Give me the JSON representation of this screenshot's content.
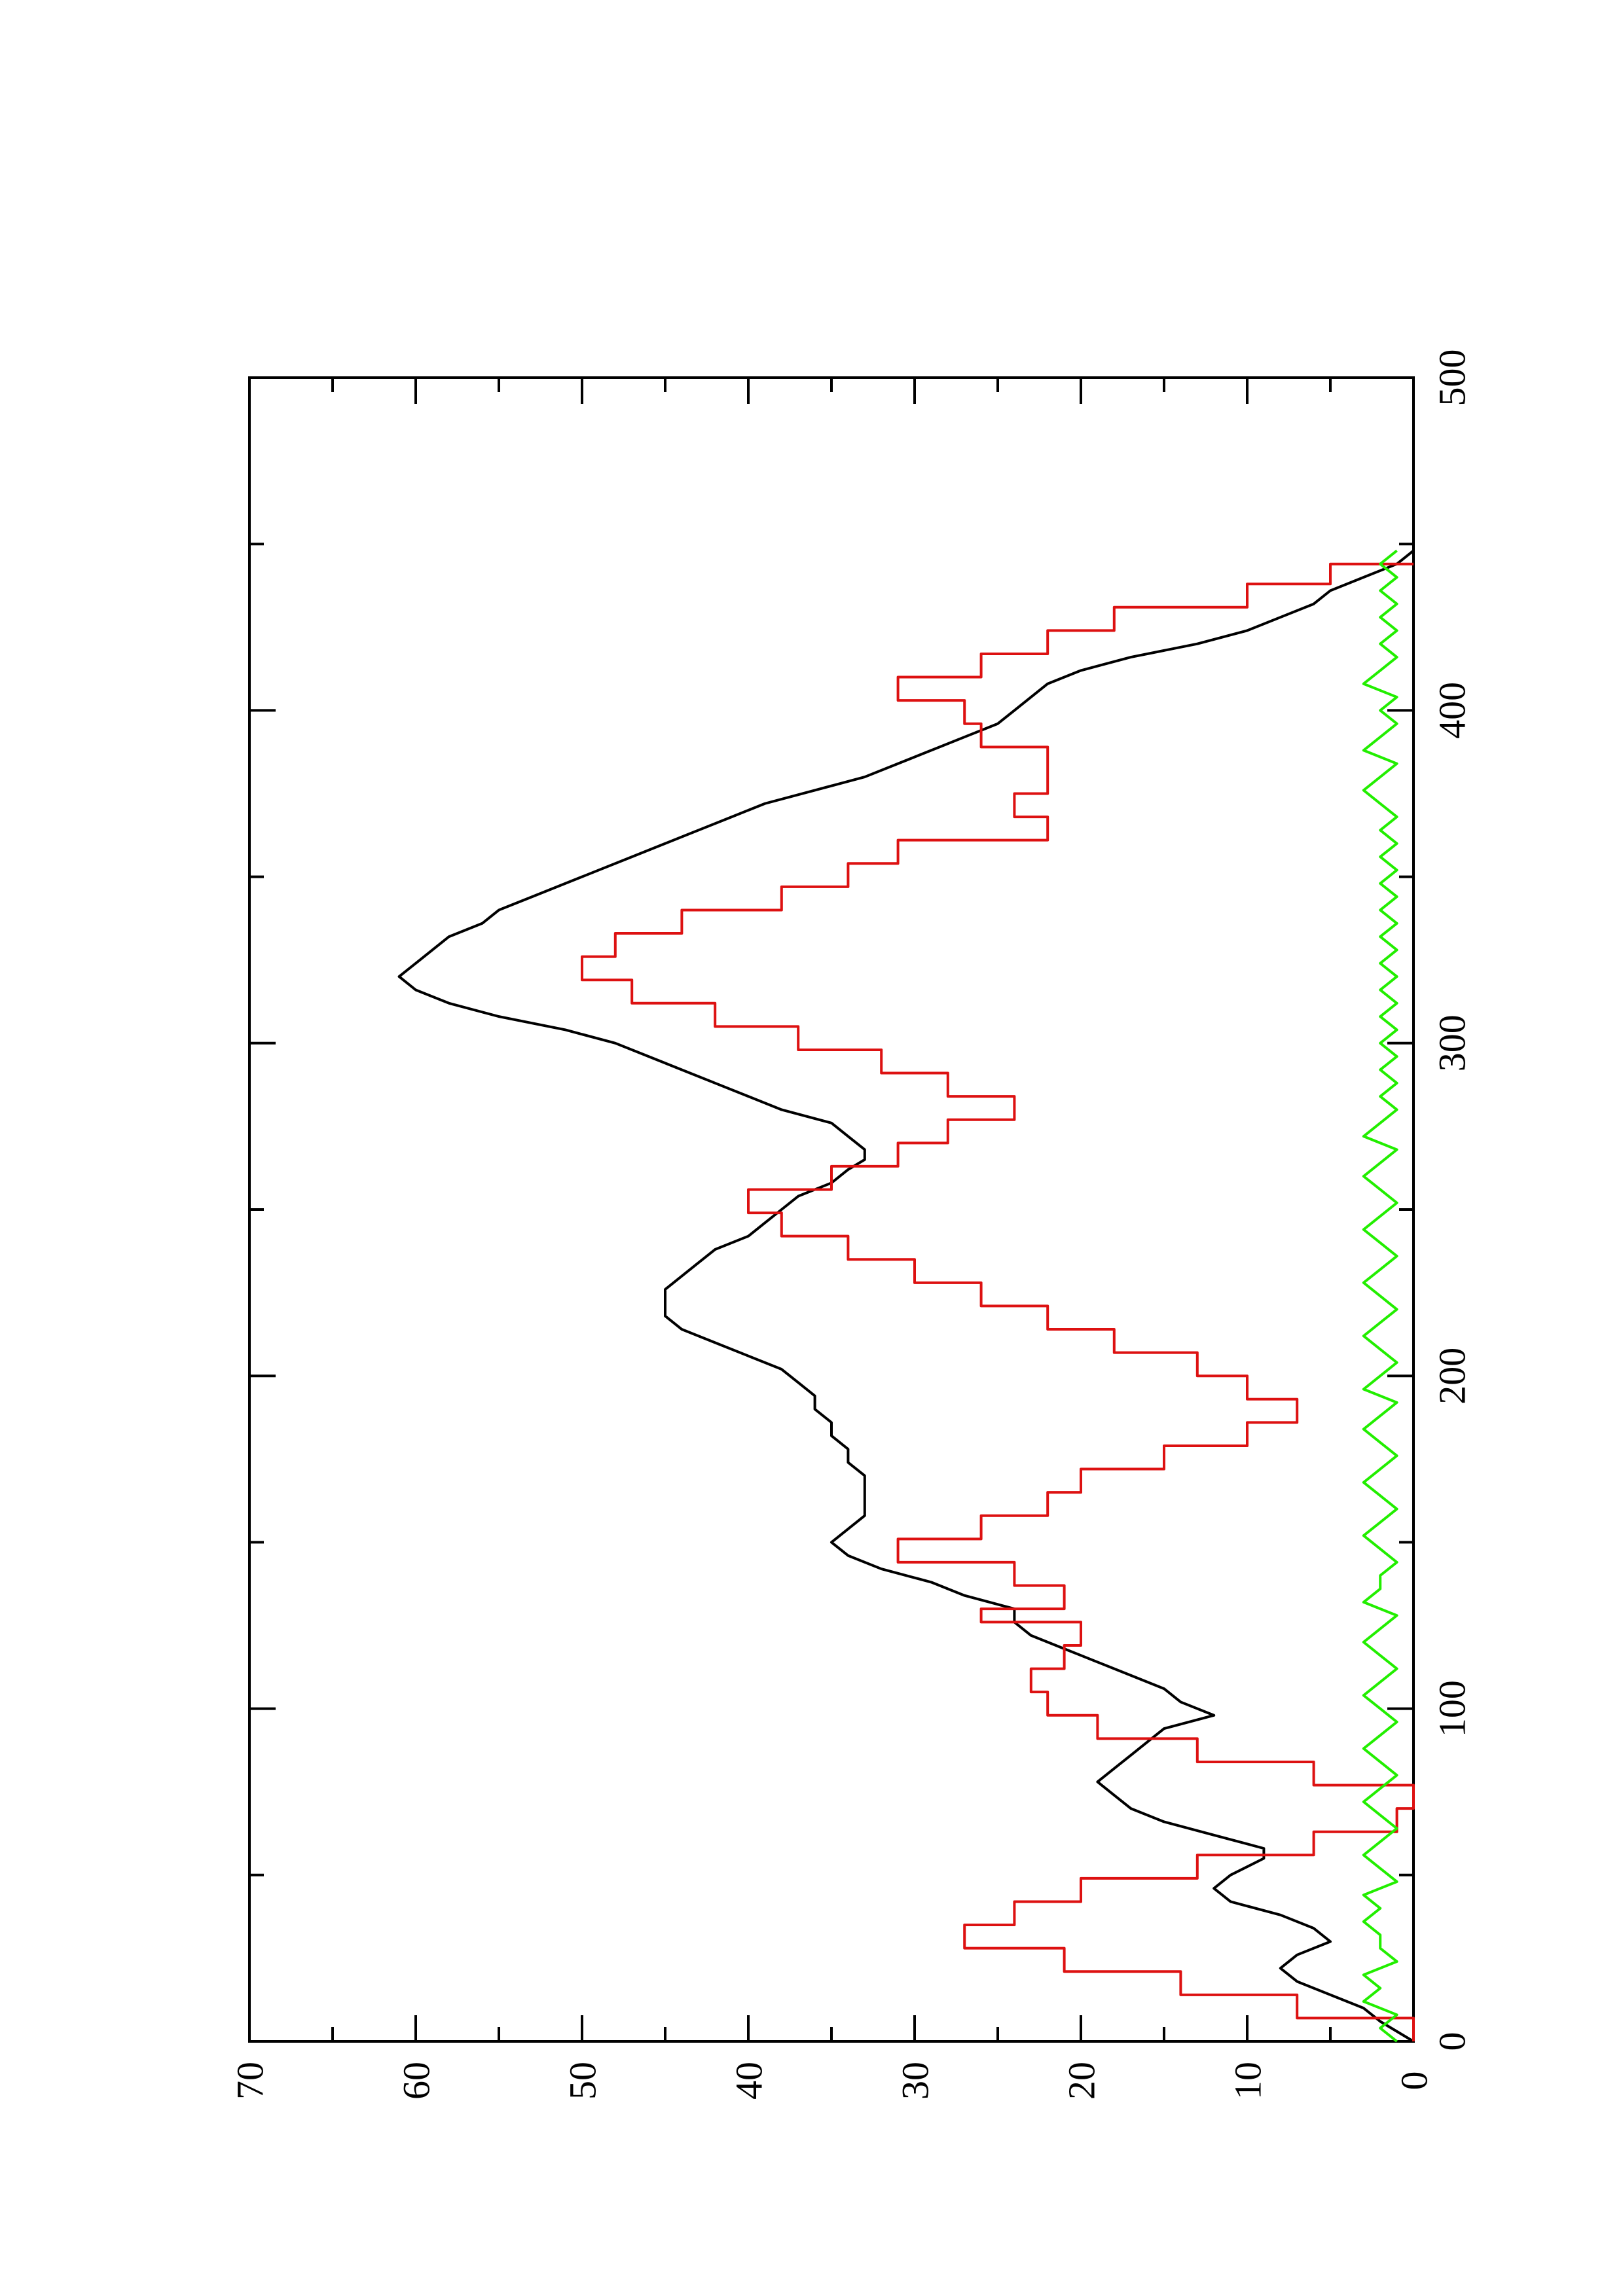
{
  "chart_data": {
    "type": "line",
    "title": "",
    "xlabel": "",
    "ylabel": "",
    "xlim": [
      0,
      500
    ],
    "ylim": [
      0,
      70
    ],
    "x_ticks": [
      0,
      100,
      200,
      300,
      400,
      500
    ],
    "x_tick_labels": [
      "0",
      "100",
      "200",
      "300",
      "400",
      "500"
    ],
    "y_ticks": [
      0,
      10,
      20,
      30,
      40,
      50,
      60,
      70
    ],
    "y_tick_labels": [
      "0",
      "10",
      "20",
      "30",
      "40",
      "50",
      "60",
      "70"
    ],
    "grid": false,
    "legend": "none",
    "orientation": "rotated 90 degrees counter-clockwise",
    "series": [
      {
        "color": "#000000",
        "style": "smooth",
        "points": [
          [
            0,
            0
          ],
          [
            3,
            1
          ],
          [
            6,
            2
          ],
          [
            10,
            3
          ],
          [
            14,
            5
          ],
          [
            18,
            7
          ],
          [
            22,
            8
          ],
          [
            26,
            7
          ],
          [
            30,
            5
          ],
          [
            34,
            6
          ],
          [
            38,
            8
          ],
          [
            42,
            11
          ],
          [
            46,
            12
          ],
          [
            50,
            11
          ],
          [
            55,
            9
          ],
          [
            58,
            9
          ],
          [
            62,
            12
          ],
          [
            66,
            15
          ],
          [
            70,
            17
          ],
          [
            74,
            18
          ],
          [
            78,
            19
          ],
          [
            82,
            18
          ],
          [
            86,
            17
          ],
          [
            90,
            16
          ],
          [
            94,
            15
          ],
          [
            98,
            12
          ],
          [
            102,
            14
          ],
          [
            106,
            15
          ],
          [
            110,
            17
          ],
          [
            114,
            19
          ],
          [
            118,
            21
          ],
          [
            122,
            23
          ],
          [
            126,
            24
          ],
          [
            130,
            24
          ],
          [
            134,
            27
          ],
          [
            138,
            29
          ],
          [
            142,
            32
          ],
          [
            146,
            34
          ],
          [
            150,
            35
          ],
          [
            154,
            34
          ],
          [
            158,
            33
          ],
          [
            162,
            33
          ],
          [
            166,
            33
          ],
          [
            170,
            33
          ],
          [
            174,
            34
          ],
          [
            178,
            34
          ],
          [
            182,
            35
          ],
          [
            186,
            35
          ],
          [
            190,
            36
          ],
          [
            194,
            36
          ],
          [
            198,
            37
          ],
          [
            202,
            38
          ],
          [
            206,
            40
          ],
          [
            210,
            42
          ],
          [
            214,
            44
          ],
          [
            218,
            45
          ],
          [
            222,
            45
          ],
          [
            226,
            45
          ],
          [
            230,
            44
          ],
          [
            234,
            43
          ],
          [
            238,
            42
          ],
          [
            242,
            40
          ],
          [
            246,
            39
          ],
          [
            250,
            38
          ],
          [
            254,
            37
          ],
          [
            258,
            35
          ],
          [
            262,
            34
          ],
          [
            265,
            33
          ],
          [
            268,
            33
          ],
          [
            272,
            34
          ],
          [
            276,
            35
          ],
          [
            280,
            38
          ],
          [
            284,
            40
          ],
          [
            288,
            42
          ],
          [
            292,
            44
          ],
          [
            296,
            46
          ],
          [
            300,
            48
          ],
          [
            304,
            51
          ],
          [
            308,
            55
          ],
          [
            312,
            58
          ],
          [
            316,
            60
          ],
          [
            320,
            61
          ],
          [
            324,
            60
          ],
          [
            328,
            59
          ],
          [
            332,
            58
          ],
          [
            336,
            56
          ],
          [
            340,
            55
          ],
          [
            344,
            53
          ],
          [
            348,
            51
          ],
          [
            352,
            49
          ],
          [
            356,
            47
          ],
          [
            360,
            45
          ],
          [
            364,
            43
          ],
          [
            368,
            41
          ],
          [
            372,
            39
          ],
          [
            376,
            36
          ],
          [
            380,
            33
          ],
          [
            384,
            31
          ],
          [
            388,
            29
          ],
          [
            392,
            27
          ],
          [
            396,
            25
          ],
          [
            400,
            24
          ],
          [
            404,
            23
          ],
          [
            408,
            22
          ],
          [
            412,
            20
          ],
          [
            416,
            17
          ],
          [
            420,
            13
          ],
          [
            424,
            10
          ],
          [
            428,
            8
          ],
          [
            432,
            6
          ],
          [
            436,
            5
          ],
          [
            440,
            3
          ],
          [
            444,
            1
          ],
          [
            448,
            0
          ]
        ]
      },
      {
        "color": "#dd1111",
        "style": "step",
        "points": [
          [
            0,
            0
          ],
          [
            7,
            7
          ],
          [
            14,
            14
          ],
          [
            21,
            21
          ],
          [
            28,
            27
          ],
          [
            35,
            24
          ],
          [
            42,
            20
          ],
          [
            49,
            13
          ],
          [
            56,
            6
          ],
          [
            63,
            1
          ],
          [
            70,
            0
          ],
          [
            77,
            6
          ],
          [
            84,
            13
          ],
          [
            91,
            19
          ],
          [
            98,
            22
          ],
          [
            105,
            23
          ],
          [
            112,
            21
          ],
          [
            119,
            20
          ],
          [
            126,
            26
          ],
          [
            130,
            21
          ],
          [
            137,
            24
          ],
          [
            144,
            31
          ],
          [
            151,
            26
          ],
          [
            158,
            22
          ],
          [
            165,
            20
          ],
          [
            172,
            15
          ],
          [
            179,
            10
          ],
          [
            186,
            7
          ],
          [
            193,
            10
          ],
          [
            200,
            13
          ],
          [
            207,
            18
          ],
          [
            214,
            22
          ],
          [
            221,
            26
          ],
          [
            228,
            30
          ],
          [
            235,
            34
          ],
          [
            242,
            38
          ],
          [
            249,
            40
          ],
          [
            256,
            35
          ],
          [
            263,
            31
          ],
          [
            270,
            28
          ],
          [
            277,
            24
          ],
          [
            284,
            28
          ],
          [
            291,
            32
          ],
          [
            298,
            37
          ],
          [
            305,
            42
          ],
          [
            312,
            47
          ],
          [
            319,
            50
          ],
          [
            326,
            48
          ],
          [
            333,
            44
          ],
          [
            340,
            38
          ],
          [
            347,
            34
          ],
          [
            354,
            31
          ],
          [
            361,
            22
          ],
          [
            368,
            24
          ],
          [
            375,
            22
          ],
          [
            382,
            22
          ],
          [
            389,
            26
          ],
          [
            396,
            27
          ],
          [
            403,
            31
          ],
          [
            410,
            26
          ],
          [
            417,
            22
          ],
          [
            424,
            18
          ],
          [
            431,
            10
          ],
          [
            438,
            5
          ],
          [
            444,
            0
          ]
        ]
      },
      {
        "color": "#22ee00",
        "style": "noisy",
        "points": [
          [
            0,
            1
          ],
          [
            4,
            2
          ],
          [
            8,
            1
          ],
          [
            12,
            3
          ],
          [
            16,
            2
          ],
          [
            20,
            3
          ],
          [
            24,
            1
          ],
          [
            28,
            2
          ],
          [
            32,
            2
          ],
          [
            36,
            3
          ],
          [
            40,
            2
          ],
          [
            44,
            3
          ],
          [
            48,
            1
          ],
          [
            52,
            2
          ],
          [
            56,
            3
          ],
          [
            60,
            2
          ],
          [
            64,
            1
          ],
          [
            68,
            2
          ],
          [
            72,
            3
          ],
          [
            76,
            2
          ],
          [
            80,
            1
          ],
          [
            84,
            2
          ],
          [
            88,
            3
          ],
          [
            92,
            2
          ],
          [
            96,
            1
          ],
          [
            100,
            2
          ],
          [
            104,
            3
          ],
          [
            108,
            2
          ],
          [
            112,
            1
          ],
          [
            116,
            2
          ],
          [
            120,
            3
          ],
          [
            124,
            2
          ],
          [
            128,
            1
          ],
          [
            132,
            3
          ],
          [
            136,
            2
          ],
          [
            140,
            2
          ],
          [
            144,
            1
          ],
          [
            148,
            2
          ],
          [
            152,
            3
          ],
          [
            156,
            2
          ],
          [
            160,
            1
          ],
          [
            164,
            2
          ],
          [
            168,
            3
          ],
          [
            172,
            2
          ],
          [
            176,
            1
          ],
          [
            180,
            2
          ],
          [
            184,
            3
          ],
          [
            188,
            2
          ],
          [
            192,
            1
          ],
          [
            196,
            3
          ],
          [
            200,
            2
          ],
          [
            204,
            1
          ],
          [
            208,
            2
          ],
          [
            212,
            3
          ],
          [
            216,
            2
          ],
          [
            220,
            1
          ],
          [
            224,
            2
          ],
          [
            228,
            3
          ],
          [
            232,
            2
          ],
          [
            236,
            1
          ],
          [
            240,
            2
          ],
          [
            244,
            3
          ],
          [
            248,
            2
          ],
          [
            252,
            1
          ],
          [
            256,
            2
          ],
          [
            260,
            3
          ],
          [
            264,
            2
          ],
          [
            268,
            1
          ],
          [
            272,
            3
          ],
          [
            276,
            2
          ],
          [
            280,
            1
          ],
          [
            284,
            2
          ],
          [
            288,
            1
          ],
          [
            292,
            2
          ],
          [
            296,
            1
          ],
          [
            300,
            2
          ],
          [
            304,
            1
          ],
          [
            308,
            2
          ],
          [
            312,
            1
          ],
          [
            316,
            2
          ],
          [
            320,
            1
          ],
          [
            324,
            2
          ],
          [
            328,
            1
          ],
          [
            332,
            2
          ],
          [
            336,
            1
          ],
          [
            340,
            2
          ],
          [
            344,
            1
          ],
          [
            348,
            2
          ],
          [
            352,
            1
          ],
          [
            356,
            2
          ],
          [
            360,
            1
          ],
          [
            364,
            2
          ],
          [
            368,
            1
          ],
          [
            372,
            2
          ],
          [
            376,
            3
          ],
          [
            380,
            2
          ],
          [
            384,
            1
          ],
          [
            388,
            3
          ],
          [
            392,
            2
          ],
          [
            396,
            1
          ],
          [
            400,
            2
          ],
          [
            404,
            1
          ],
          [
            408,
            3
          ],
          [
            412,
            2
          ],
          [
            416,
            1
          ],
          [
            420,
            2
          ],
          [
            424,
            1
          ],
          [
            428,
            2
          ],
          [
            432,
            1
          ],
          [
            436,
            2
          ],
          [
            440,
            1
          ],
          [
            444,
            2
          ],
          [
            448,
            1
          ]
        ]
      }
    ]
  }
}
